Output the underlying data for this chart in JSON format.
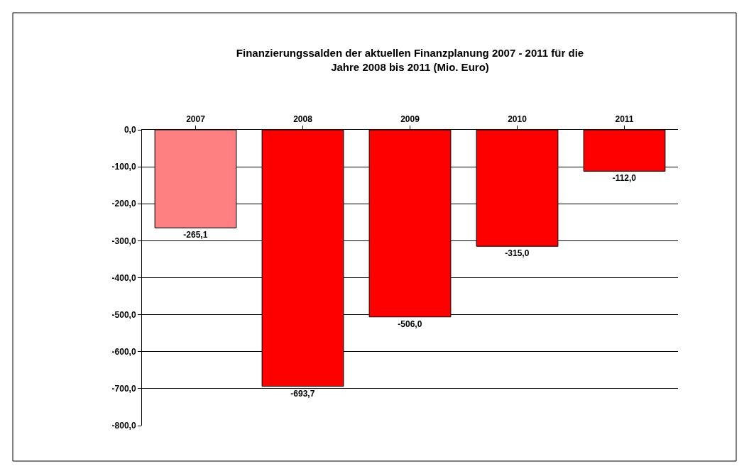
{
  "chart_data": {
    "type": "bar",
    "title": "Finanzierungssalden der aktuellen Finanzplanung 2007 - 2011 für die\nJahre 2008 bis 2011 (Mio. Euro)",
    "categories": [
      "2007",
      "2008",
      "2009",
      "2010",
      "2011"
    ],
    "values": [
      -265.1,
      -693.7,
      -506.0,
      -315.0,
      -112.0
    ],
    "value_labels": [
      "-265,1",
      "-693,7",
      "-506,0",
      "-315,0",
      "-112,0"
    ],
    "colors": [
      "#ff8080",
      "#ff0000",
      "#ff0000",
      "#ff0000",
      "#ff0000"
    ],
    "ylim": [
      -800,
      0
    ],
    "yticks": [
      {
        "value": 0,
        "label": "0,0"
      },
      {
        "value": -100,
        "label": "-100,0"
      },
      {
        "value": -200,
        "label": "-200,0"
      },
      {
        "value": -300,
        "label": "-300,0"
      },
      {
        "value": -400,
        "label": "-400,0"
      },
      {
        "value": -500,
        "label": "-500,0"
      },
      {
        "value": -600,
        "label": "-600,0"
      },
      {
        "value": -700,
        "label": "-700,0"
      },
      {
        "value": -800,
        "label": "-800,0"
      }
    ],
    "grid": "y",
    "legend": false
  }
}
